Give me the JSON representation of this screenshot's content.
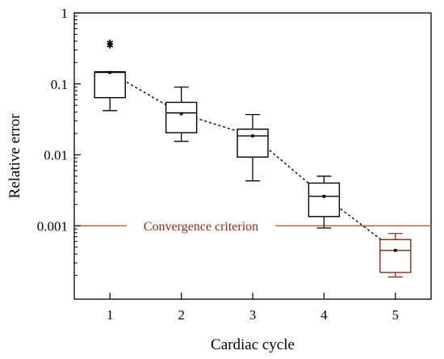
{
  "chart_data": {
    "type": "box",
    "xlabel": "Cardiac cycle",
    "ylabel": "Relative error",
    "yscale": "log",
    "ylim": [
      0.0001,
      1
    ],
    "xlim": [
      0.5,
      5.5
    ],
    "x_ticks": [
      "1",
      "2",
      "3",
      "4",
      "5"
    ],
    "y_ticks": [
      {
        "value": 1,
        "label": "1"
      },
      {
        "value": 0.1,
        "label": "0.1"
      },
      {
        "value": 0.01,
        "label": "0.01"
      },
      {
        "value": 0.001,
        "label": "0.001"
      }
    ],
    "boxes": [
      {
        "category": "1",
        "whisker_low": 0.042,
        "q1": 0.064,
        "median": 0.145,
        "q3": 0.148,
        "whisker_high": 0.148,
        "mean": 0.145,
        "outliers": [
          0.35,
          0.38
        ],
        "color": "#000000"
      },
      {
        "category": "2",
        "whisker_low": 0.0155,
        "q1": 0.0205,
        "median": 0.039,
        "q3": 0.055,
        "whisker_high": 0.09,
        "mean": 0.038,
        "outliers": [],
        "color": "#000000"
      },
      {
        "category": "3",
        "whisker_low": 0.0043,
        "q1": 0.0093,
        "median": 0.0185,
        "q3": 0.023,
        "whisker_high": 0.037,
        "mean": 0.0185,
        "outliers": [],
        "color": "#000000"
      },
      {
        "category": "4",
        "whisker_low": 0.00093,
        "q1": 0.00135,
        "median": 0.0026,
        "q3": 0.004,
        "whisker_high": 0.005,
        "mean": 0.0026,
        "outliers": [],
        "color": "#000000"
      },
      {
        "category": "5",
        "whisker_low": 0.00019,
        "q1": 0.00022,
        "median": 0.00045,
        "q3": 0.00064,
        "whisker_high": 0.00078,
        "mean": 0.00045,
        "outliers": [],
        "color": "#8B2A1A"
      }
    ],
    "mean_line": {
      "style": "dotted",
      "color": "#000000"
    },
    "reference_line": {
      "value": 0.001,
      "label": "Convergence criterion",
      "color": "#A0522D"
    },
    "grid": false
  }
}
